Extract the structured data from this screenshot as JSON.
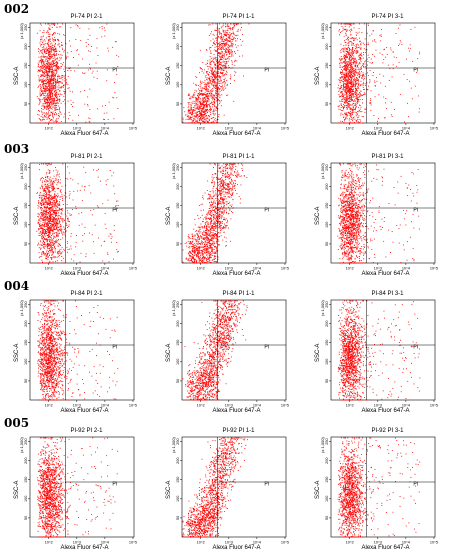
{
  "figure": {
    "groups": [
      {
        "label": "002",
        "panels": [
          {
            "title": "PI-74 PI 2-1",
            "pattern": "blob"
          },
          {
            "title": "PI-74 PI 1-1",
            "pattern": "diagonal"
          },
          {
            "title": "PI-74 PI 3-1",
            "pattern": "blob"
          }
        ]
      },
      {
        "label": "003",
        "panels": [
          {
            "title": "PI-81 PI 2-1",
            "pattern": "blob"
          },
          {
            "title": "PI-81 PI 1-1",
            "pattern": "diagonal"
          },
          {
            "title": "PI-81 PI 3-1",
            "pattern": "blob"
          }
        ]
      },
      {
        "label": "004",
        "panels": [
          {
            "title": "PI-84 PI 2-1",
            "pattern": "blob"
          },
          {
            "title": "PI-84 PI 1-1",
            "pattern": "diagonal"
          },
          {
            "title": "PI-84 PI 3-1",
            "pattern": "blob"
          }
        ]
      },
      {
        "label": "005",
        "panels": [
          {
            "title": "PI-92 PI 2-1",
            "pattern": "blob"
          },
          {
            "title": "PI-92 PI 1-1",
            "pattern": "diagonal"
          },
          {
            "title": "PI-92 PI 3-1",
            "pattern": "blob"
          }
        ]
      }
    ]
  },
  "chart_data": {
    "type": "scatter",
    "xlabel": "Alexa Fluor 647-A",
    "ylabel": "SSC-A",
    "y_scale_note": "(x 1,000)",
    "gate_label": "PI",
    "x_scale": "log",
    "x_ticks": [
      "10^2",
      "10^3",
      "10^4",
      "10^5"
    ],
    "y_ticks": [
      "50",
      "100",
      "150",
      "200",
      "250"
    ],
    "ylim": [
      0,
      262
    ],
    "point_color": "#ff0000"
  }
}
